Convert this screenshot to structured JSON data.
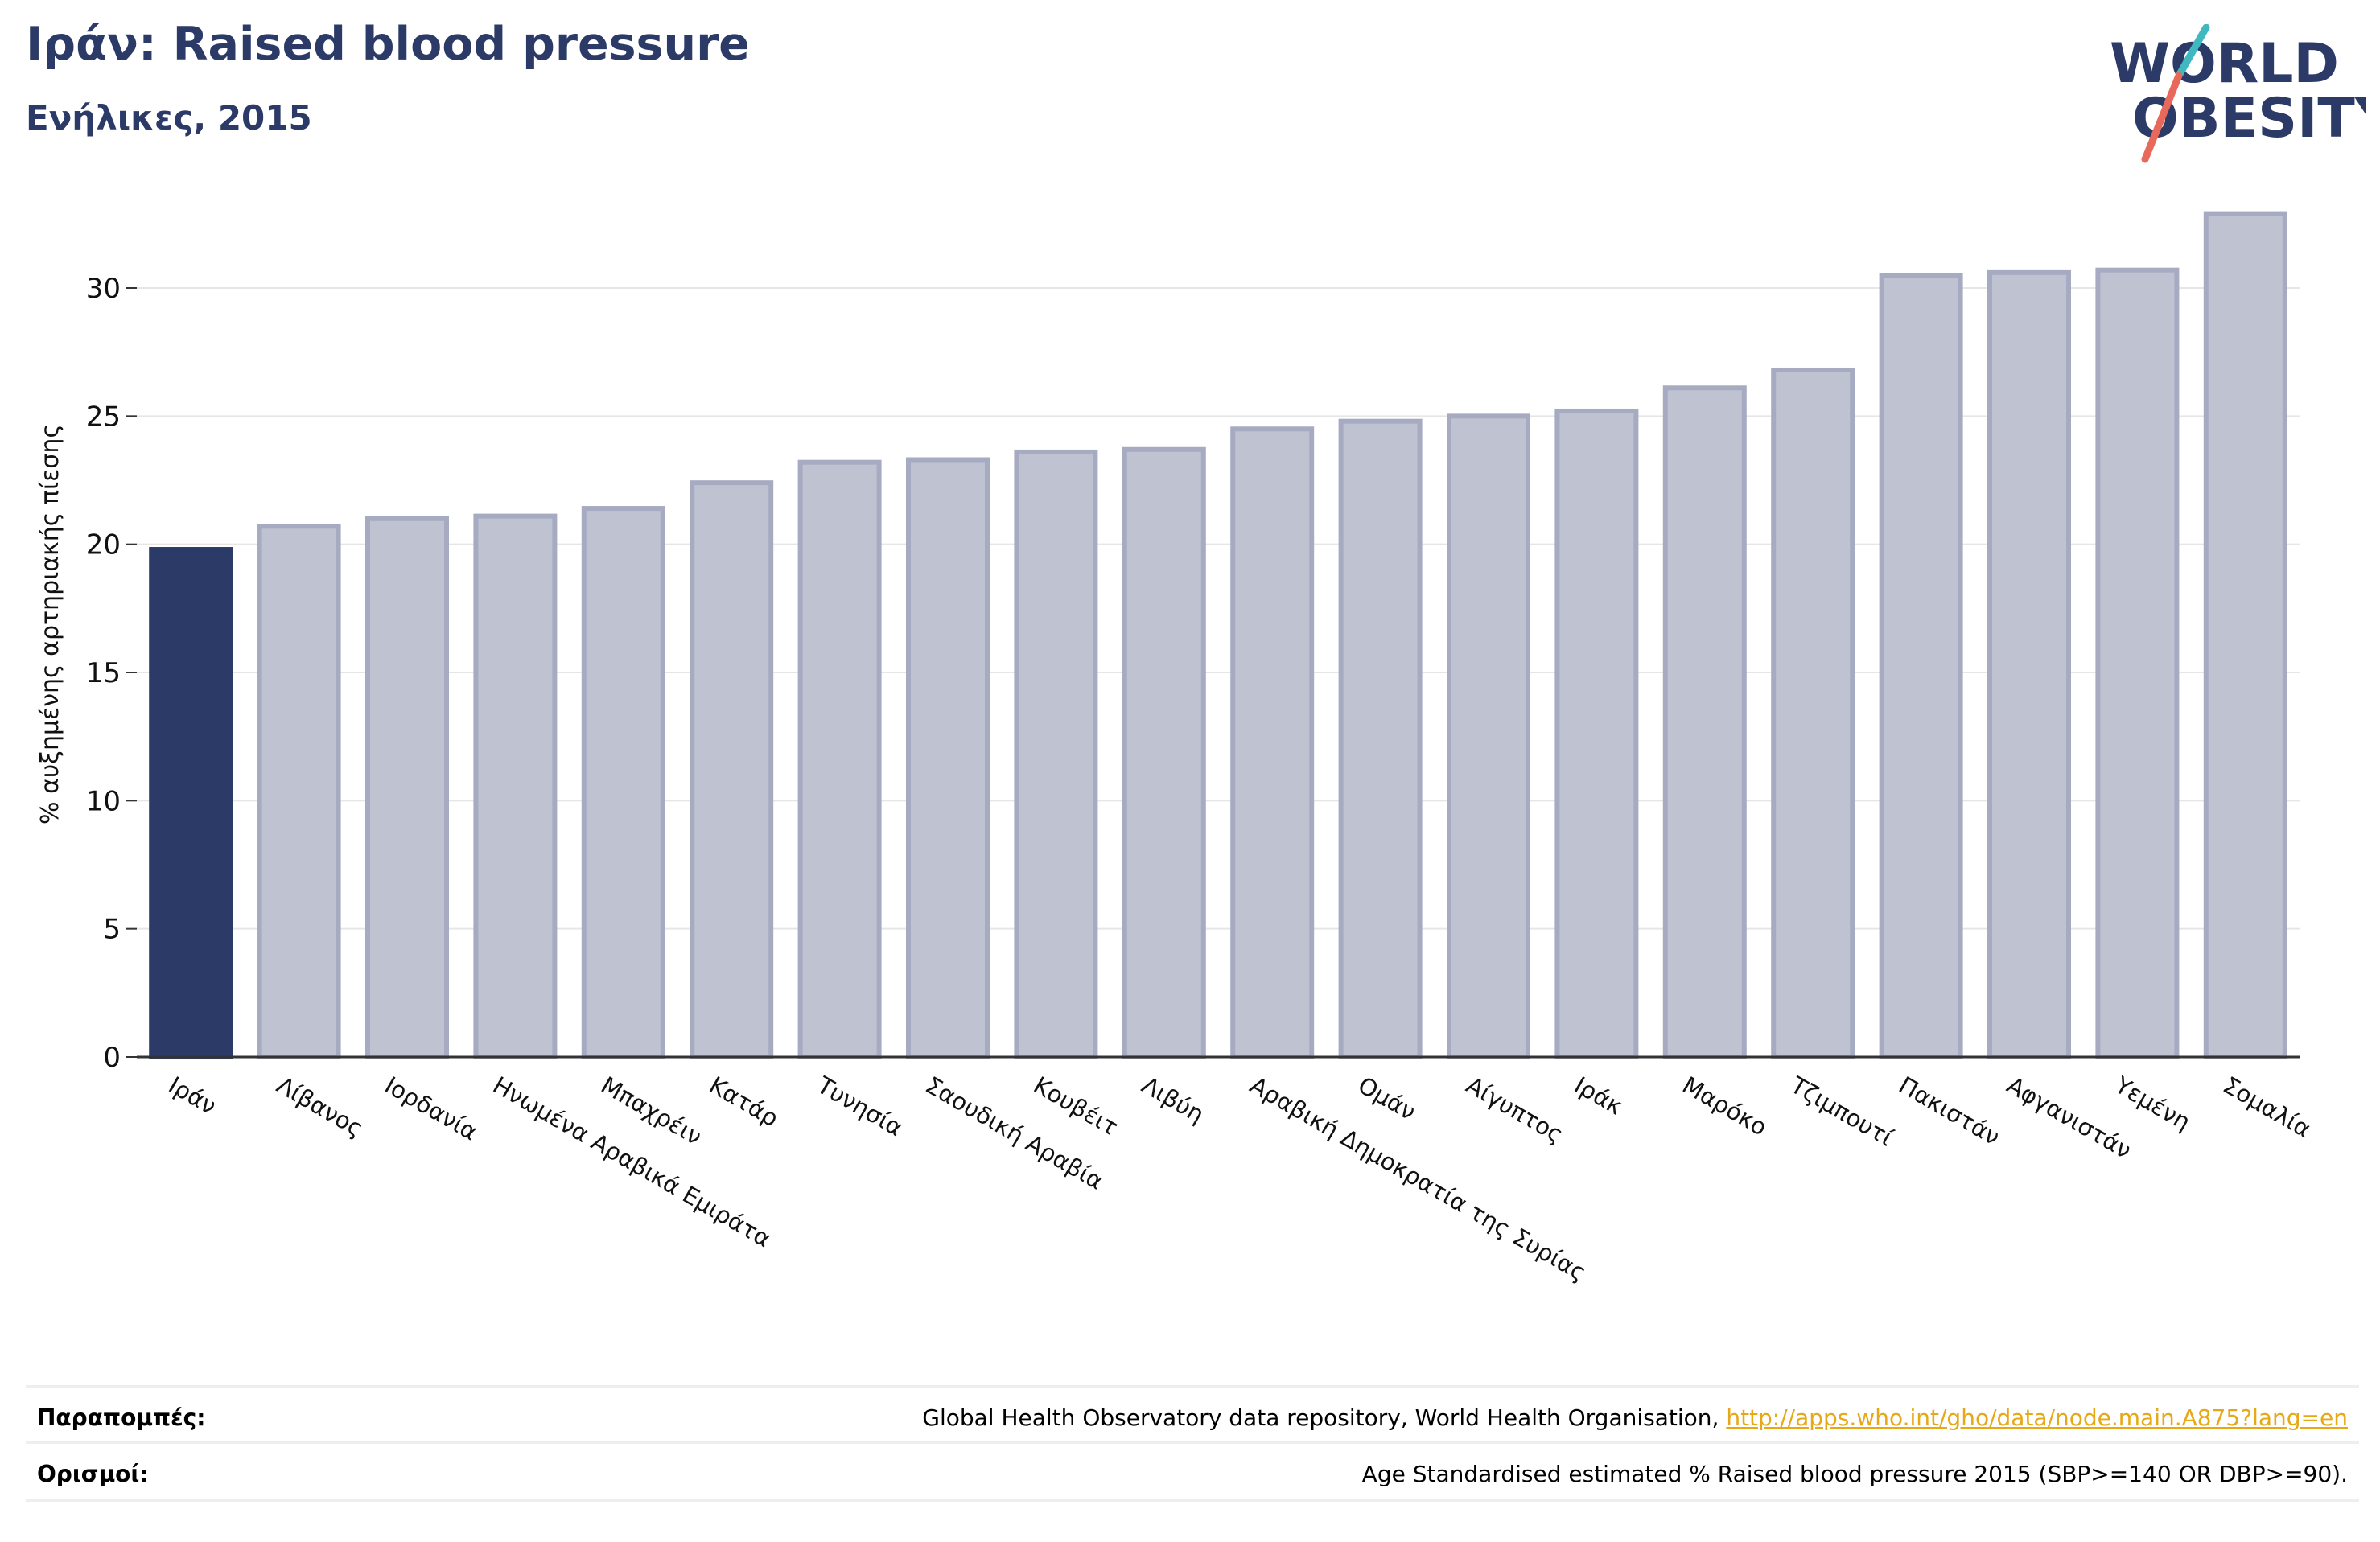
{
  "header": {
    "title": "Ιράν: Raised blood pressure",
    "subtitle": "Ενήλικες, 2015"
  },
  "logo": {
    "line1": "WORLD",
    "line2": "OBESITY",
    "text_color": "#2b3a67",
    "slash_colors": [
      "#3fb8c0",
      "#e8695a"
    ]
  },
  "colors": {
    "highlight_bar": "#2b3a67",
    "other_bar_fill": "#bfc2d0",
    "other_bar_stroke": "#a7abc2",
    "axis": "#333333",
    "grid": "#e6e6e6",
    "link": "#e6a817"
  },
  "chart_data": {
    "type": "bar",
    "title": "",
    "xlabel": "",
    "ylabel": "% αυξημένης αρτηριακής πίεσης",
    "ylim": [
      0,
      34
    ],
    "yticks": [
      0,
      5,
      10,
      15,
      20,
      25,
      30
    ],
    "grid": true,
    "highlight_index": 0,
    "categories": [
      "Ιράν",
      "Λίβανος",
      "Ιορδανία",
      "Ηνωμένα Αραβικά Εμιράτα",
      "Μπαχρέιν",
      "Κατάρ",
      "Τυνησία",
      "Σαουδική Αραβία",
      "Κουβέιτ",
      "Λιβύη",
      "Αραβική Δημοκρατία της Συρίας",
      "Ομάν",
      "Αίγυπτος",
      "Ιράκ",
      "Μαρόκο",
      "Τζιμπουτί",
      "Πακιστάν",
      "Αφγανιστάν",
      "Υεμένη",
      "Σομαλία"
    ],
    "values": [
      19.8,
      20.7,
      21.0,
      21.1,
      21.4,
      22.4,
      23.2,
      23.3,
      23.6,
      23.7,
      24.5,
      24.8,
      25.0,
      25.2,
      26.1,
      26.8,
      30.5,
      30.6,
      30.7,
      32.9
    ]
  },
  "footer": {
    "references_label": "Παραπομπές:",
    "references_text": "Global Health Observatory data repository, World Health Organisation, ",
    "references_link": "http://apps.who.int/gho/data/node.main.A875?lang=en",
    "definitions_label": "Ορισμοί:",
    "definitions_text": "Age Standardised estimated % Raised blood pressure 2015 (SBP>=140 OR DBP>=90)."
  }
}
